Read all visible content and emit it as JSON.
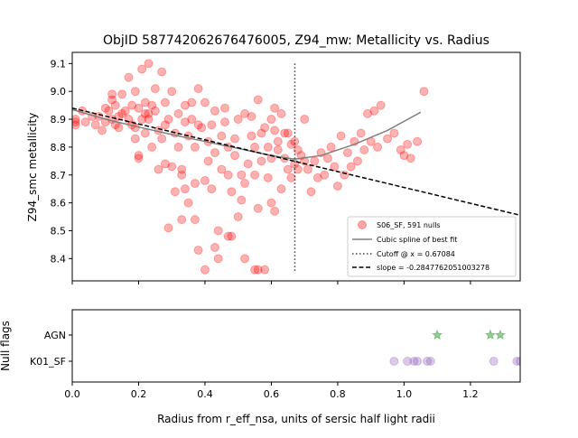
{
  "title": "ObjID 587742062676476005, Z94_mw: Metallicity vs. Radius",
  "chart_data": [
    {
      "type": "scatter",
      "ylabel": "Z94_smc metallicity",
      "xlim": [
        0,
        1.35
      ],
      "ylim": [
        8.32,
        9.14
      ],
      "yticks": [
        "8.4",
        "8.5",
        "8.6",
        "8.7",
        "8.8",
        "8.9",
        "9.0",
        "9.1"
      ],
      "legend_position": "lower right",
      "colors": {
        "points": "#ff0000",
        "spline": "#808080",
        "cutoff": "#404040",
        "slope": "#000000"
      },
      "legend": {
        "points": "S06_SF, 591 nulls",
        "spline": "Cubic spline of best fit",
        "cutoff": "Cutoff @ x = 0.67084",
        "slope": "slope = -0.2847762051003278"
      },
      "cutoff_x": 0.67084,
      "slope_line": {
        "slope": -0.2847762051003278,
        "intercept": 8.94
      },
      "spline": {
        "x": [
          0.0,
          0.1,
          0.2,
          0.3,
          0.4,
          0.5,
          0.6,
          0.67084,
          0.75,
          0.85,
          0.95,
          1.05
        ],
        "y": [
          8.935,
          8.9,
          8.872,
          8.845,
          8.82,
          8.795,
          8.77,
          8.757,
          8.77,
          8.81,
          8.86,
          8.925
        ]
      },
      "points": {
        "x": [
          0.01,
          0.01,
          0.01,
          0.03,
          0.04,
          0.06,
          0.07,
          0.08,
          0.09,
          0.1,
          0.1,
          0.11,
          0.12,
          0.12,
          0.13,
          0.13,
          0.14,
          0.14,
          0.15,
          0.15,
          0.16,
          0.17,
          0.17,
          0.18,
          0.18,
          0.19,
          0.19,
          0.2,
          0.2,
          0.2,
          0.21,
          0.21,
          0.22,
          0.22,
          0.22,
          0.23,
          0.23,
          0.24,
          0.24,
          0.25,
          0.25,
          0.26,
          0.26,
          0.27,
          0.27,
          0.28,
          0.28,
          0.29,
          0.29,
          0.3,
          0.3,
          0.31,
          0.31,
          0.32,
          0.32,
          0.33,
          0.33,
          0.34,
          0.34,
          0.35,
          0.35,
          0.36,
          0.36,
          0.37,
          0.37,
          0.38,
          0.38,
          0.39,
          0.4,
          0.4,
          0.41,
          0.41,
          0.42,
          0.42,
          0.43,
          0.43,
          0.44,
          0.44,
          0.45,
          0.45,
          0.46,
          0.46,
          0.47,
          0.47,
          0.48,
          0.48,
          0.49,
          0.49,
          0.5,
          0.5,
          0.51,
          0.51,
          0.52,
          0.52,
          0.53,
          0.54,
          0.54,
          0.55,
          0.55,
          0.56,
          0.56,
          0.57,
          0.57,
          0.58,
          0.58,
          0.59,
          0.59,
          0.6,
          0.6,
          0.61,
          0.61,
          0.62,
          0.62,
          0.63,
          0.63,
          0.64,
          0.64,
          0.65,
          0.65,
          0.66,
          0.66,
          0.67,
          0.67,
          0.68,
          0.68,
          0.69,
          0.7,
          0.7,
          0.71,
          0.72,
          0.73,
          0.74,
          0.75,
          0.76,
          0.77,
          0.78,
          0.79,
          0.8,
          0.81,
          0.82,
          0.83,
          0.84,
          0.85,
          0.86,
          0.87,
          0.88,
          0.89,
          0.9,
          0.91,
          0.92,
          0.93,
          0.95,
          0.97,
          0.99,
          1.0,
          1.01,
          1.02,
          1.04,
          1.06,
          0.12,
          0.19,
          0.23,
          0.28,
          0.33,
          0.34,
          0.37,
          0.38,
          0.4,
          0.43,
          0.47,
          0.52,
          0.55,
          0.56,
          0.6,
          0.61
        ],
        "y": [
          8.88,
          8.9,
          8.89,
          8.93,
          8.89,
          8.91,
          8.88,
          8.91,
          8.86,
          8.89,
          8.94,
          8.93,
          8.97,
          8.9,
          8.88,
          8.95,
          8.87,
          8.91,
          8.99,
          8.92,
          8.93,
          9.05,
          8.9,
          8.95,
          8.88,
          9.0,
          8.87,
          8.94,
          8.76,
          8.77,
          9.08,
          8.9,
          8.96,
          8.92,
          8.85,
          9.1,
          8.9,
          8.8,
          8.95,
          9.01,
          8.93,
          8.86,
          8.72,
          8.83,
          9.07,
          8.74,
          8.96,
          8.51,
          8.9,
          8.73,
          9.0,
          8.85,
          8.64,
          8.92,
          8.8,
          8.54,
          8.7,
          8.89,
          8.95,
          8.6,
          8.84,
          8.9,
          8.96,
          8.8,
          8.67,
          8.88,
          9.01,
          8.87,
          8.96,
          8.68,
          8.82,
          8.75,
          8.88,
          8.65,
          8.93,
          8.78,
          8.4,
          8.5,
          8.72,
          8.84,
          8.89,
          8.94,
          8.8,
          8.7,
          8.48,
          8.64,
          8.83,
          8.77,
          8.9,
          8.55,
          8.7,
          8.61,
          8.92,
          8.67,
          8.74,
          8.84,
          8.91,
          8.8,
          8.7,
          8.58,
          8.97,
          8.85,
          8.75,
          8.36,
          8.87,
          8.69,
          8.8,
          8.9,
          8.76,
          8.94,
          8.86,
          8.82,
          8.79,
          8.65,
          8.92,
          8.76,
          8.85,
          8.72,
          8.85,
          8.81,
          8.69,
          8.82,
          8.74,
          8.72,
          8.79,
          8.77,
          8.75,
          8.9,
          8.72,
          8.64,
          8.75,
          8.69,
          8.78,
          8.7,
          8.76,
          8.8,
          8.73,
          8.66,
          8.84,
          8.7,
          8.78,
          8.73,
          8.82,
          8.75,
          8.85,
          8.79,
          8.92,
          8.82,
          8.93,
          8.8,
          8.95,
          8.83,
          8.85,
          8.79,
          8.77,
          8.81,
          8.76,
          8.82,
          9.0,
          8.99,
          8.83,
          8.92,
          8.88,
          8.72,
          8.65,
          8.54,
          8.43,
          8.36,
          8.44,
          8.48,
          8.4,
          8.36,
          8.36,
          8.6,
          8.57
        ]
      }
    },
    {
      "type": "scatter",
      "ylabel": "Null flags",
      "xlabel": "Radius from r_eff_nsa, units of sersic half light radii",
      "xlim": [
        0,
        1.35
      ],
      "xticks": [
        "0.0",
        "0.2",
        "0.4",
        "0.6",
        "0.8",
        "1.0",
        "1.2"
      ],
      "categories": [
        "AGN",
        "K01_SF"
      ],
      "colors": {
        "AGN": "#2ca02c",
        "K01_SF": "#9467bd"
      },
      "series": [
        {
          "name": "AGN",
          "x": [
            1.1,
            1.26,
            1.29
          ]
        },
        {
          "name": "K01_SF",
          "x": [
            0.97,
            1.01,
            1.03,
            1.04,
            1.07,
            1.08,
            1.27,
            1.34,
            1.35
          ]
        }
      ]
    }
  ]
}
